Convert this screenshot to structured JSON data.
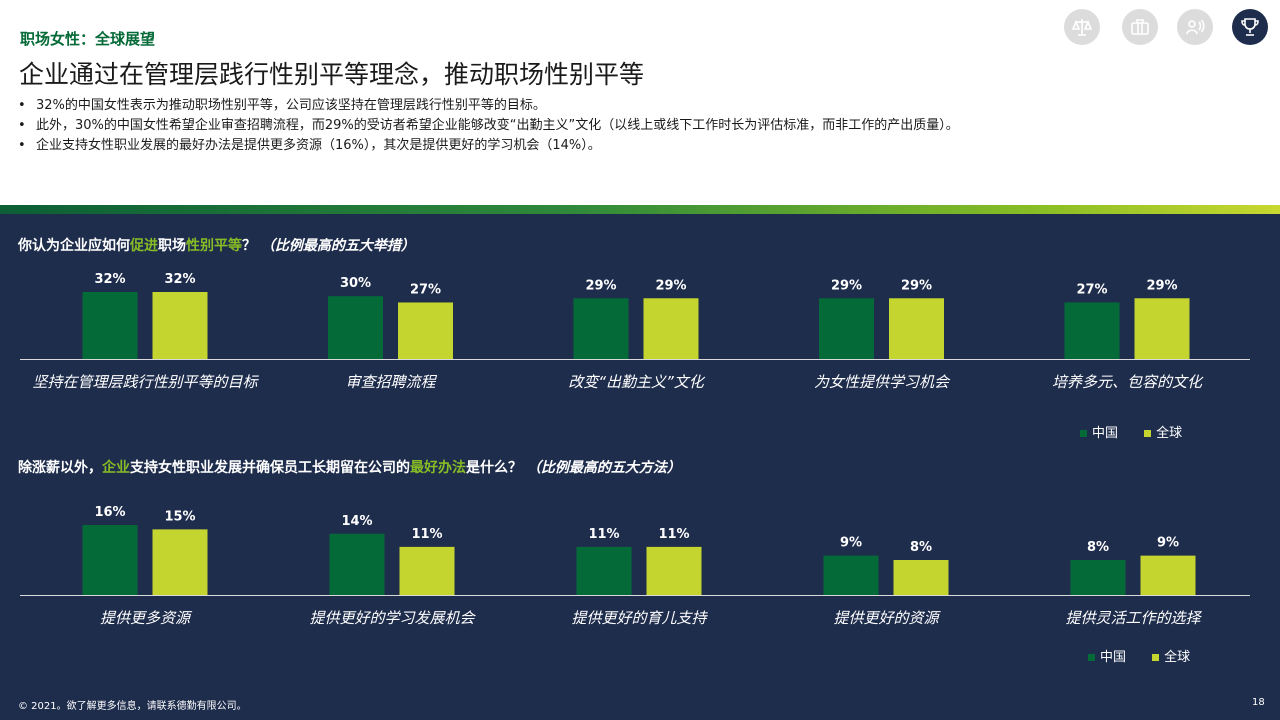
{
  "header": {
    "section": "职场女性：全球展望",
    "title": "企业通过在管理层践行性别平等理念，推动职场性别平等",
    "bullets": [
      "32%的中国女性表示为推动职场性别平等，公司应该坚持在管理层践行性别平等的目标。",
      "此外，30%的中国女性希望企业审查招聘流程，而29%的受访者希望企业能够改变“出勤主义”文化（以线上或线下工作时长为评估标准，而非工作的产出质量）。",
      "企业支持女性职业发展的最好办法是提供更多资源（16%），其次是提供更好的学习机会（14%）。"
    ],
    "icons": [
      "scales-icon",
      "briefcase-icon",
      "people-icon",
      "trophy-icon"
    ]
  },
  "colors": {
    "china": "#046a38",
    "global": "#c4d52f",
    "panel": "#1f2d4d",
    "highlight": "#86bc25"
  },
  "questions": [
    {
      "parts": [
        {
          "text": "你认为企业应如何",
          "style": "normal"
        },
        {
          "text": "促进",
          "style": "hl"
        },
        {
          "text": "职场",
          "style": "normal"
        },
        {
          "text": "性别平等",
          "style": "hl"
        },
        {
          "text": "？ ",
          "style": "normal"
        },
        {
          "text": "（比例最高的五大举措）",
          "style": "it"
        }
      ]
    },
    {
      "parts": [
        {
          "text": "除涨薪以外，",
          "style": "normal"
        },
        {
          "text": "企业",
          "style": "hl"
        },
        {
          "text": "支持女性职业发展并确保员工长期留在公司的",
          "style": "normal"
        },
        {
          "text": "最好办法",
          "style": "hl"
        },
        {
          "text": "是什么？ ",
          "style": "normal"
        },
        {
          "text": "（比例最高的五大方法）",
          "style": "it"
        }
      ]
    }
  ],
  "chart_data": [
    {
      "type": "bar",
      "categories": [
        "坚持在管理层践行性别平等的目标",
        "审查招聘流程",
        "改变“出勤主义”文化",
        "为女性提供学习机会",
        "培养多元、包容的文化"
      ],
      "series": [
        {
          "name": "中国",
          "values": [
            32,
            30,
            29,
            29,
            27
          ]
        },
        {
          "name": "全球",
          "values": [
            32,
            27,
            29,
            29,
            29
          ]
        }
      ],
      "unit": "%",
      "ylim": [
        0,
        32
      ],
      "grid": false,
      "legend": "bottom-right"
    },
    {
      "type": "bar",
      "categories": [
        "提供更多资源",
        "提供更好的学习发展机会",
        "提供更好的育儿支持",
        "提供更好的资源",
        "提供灵活工作的选择"
      ],
      "series": [
        {
          "name": "中国",
          "values": [
            16,
            14,
            11,
            9,
            8
          ]
        },
        {
          "name": "全球",
          "values": [
            15,
            11,
            11,
            8,
            9
          ]
        }
      ],
      "unit": "%",
      "ylim": [
        0,
        16
      ],
      "grid": false,
      "legend": "bottom-right"
    }
  ],
  "footer": {
    "copyright": "© 2021。欲了解更多信息，请联系德勤有限公司。",
    "page": "18"
  }
}
